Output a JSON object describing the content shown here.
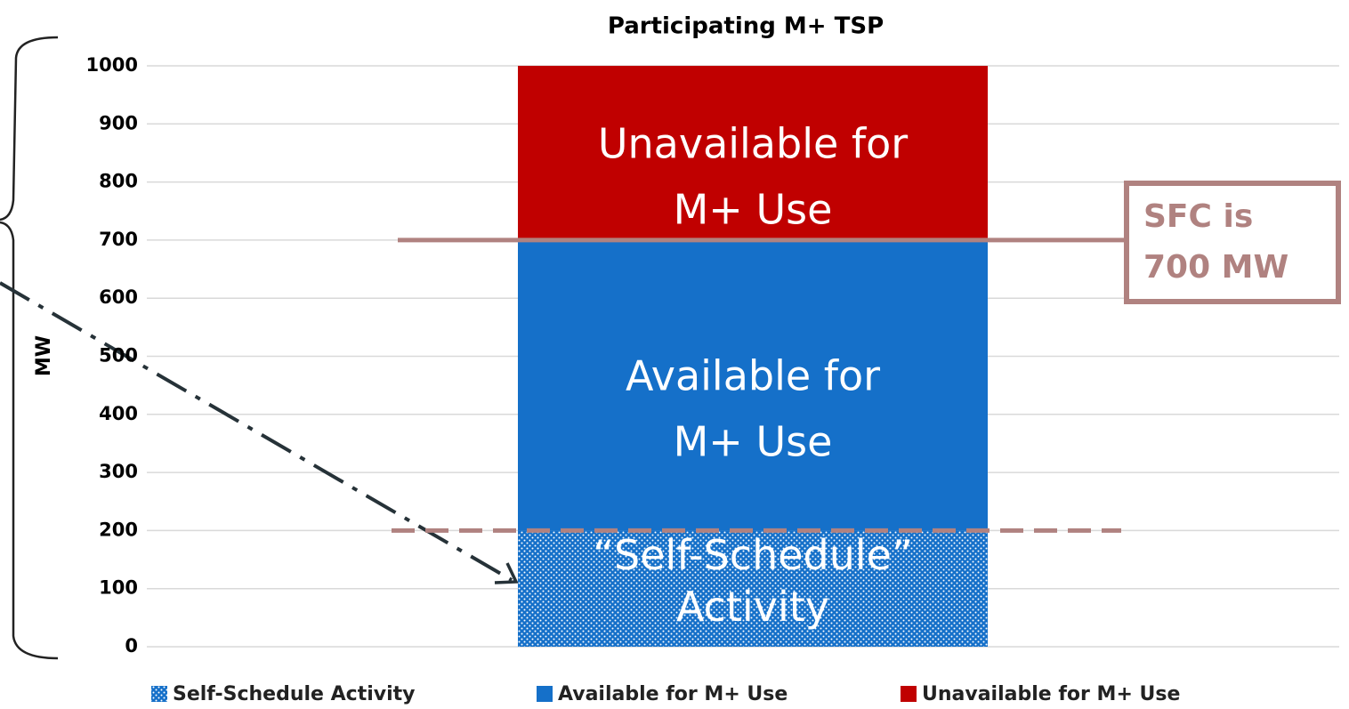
{
  "chart_data": {
    "type": "stacked_bar",
    "title": "Participating M+ TSP",
    "ylabel": "MW",
    "categories": [
      null
    ],
    "series": [
      {
        "name": "Self-Schedule Activity",
        "color": "#1570c9",
        "pattern": "dots",
        "values": [
          200
        ],
        "label_lines": [
          "“Self-Schedule”",
          "Activity"
        ]
      },
      {
        "name": "Available for M+ Use",
        "color": "#1570c9",
        "values": [
          500
        ],
        "label_lines": [
          "Available for",
          "M+ Use"
        ]
      },
      {
        "name": "Unavailable for M+ Use",
        "color": "#c00000",
        "values": [
          300
        ],
        "label_lines": [
          "Unavailable for",
          "M+ Use"
        ]
      }
    ],
    "reference_lines": [
      {
        "value": 700,
        "style": "solid",
        "color": "#b08280"
      },
      {
        "value": 200,
        "style": "dashed",
        "color": "#b08280"
      }
    ],
    "annotation": {
      "lines": [
        "SFC is",
        "700 MW"
      ],
      "color": "#b08280"
    },
    "ylim": [
      0,
      1000
    ],
    "yticks": [
      0,
      100,
      200,
      300,
      400,
      500,
      600,
      700,
      800,
      900,
      1000
    ],
    "grid": true,
    "legend": "bottom"
  }
}
